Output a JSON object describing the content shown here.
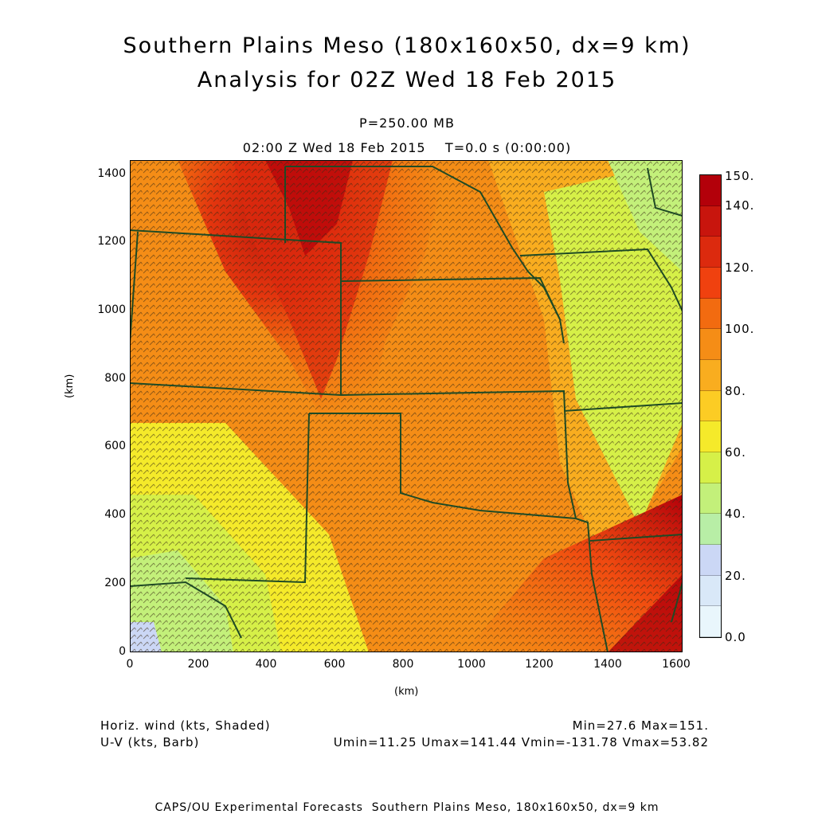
{
  "header": {
    "title_line1": "Southern Plains Meso (180x160x50, dx=9 km)",
    "title_line2": "Analysis for 02Z Wed 18 Feb 2015",
    "level": "P=250.00 MB",
    "time": "02:00 Z Wed 18 Feb 2015    T=0.0 s (0:00:00)"
  },
  "axes": {
    "x_label": "(km)",
    "y_label": "(km)",
    "x_ticks": [
      "0",
      "200",
      "400",
      "600",
      "800",
      "1000",
      "1200",
      "1400",
      "1600"
    ],
    "y_ticks": [
      "0",
      "200",
      "400",
      "600",
      "800",
      "1000",
      "1200",
      "1400"
    ],
    "x_range_km": [
      0,
      1620
    ],
    "y_range_km": [
      0,
      1440
    ]
  },
  "colorbar": {
    "labels": [
      "150.",
      "140.",
      "120.",
      "100.",
      "80.",
      "60.",
      "40.",
      "20.",
      "0.0"
    ],
    "colors": [
      "#b3000a",
      "#c8150d",
      "#dc2a0e",
      "#f0410f",
      "#f26b10",
      "#f58d16",
      "#f9ad1f",
      "#fccc24",
      "#f5ea2a",
      "#d6f048",
      "#c3f07a",
      "#b8eea6",
      "#cbd7f5",
      "#d9e8f8",
      "#e9f6fc"
    ]
  },
  "legend": {
    "field1": "Horiz. wind (kts, Shaded)",
    "field2": "U-V (kts, Barb)",
    "minmax": "Min=27.6 Max=151.",
    "uv_stats": "Umin=11.25 Umax=141.44 Vmin=-131.78 Vmax=53.82"
  },
  "footer": {
    "credit": "CAPS/OU Experimental Forecasts  Southern Plains Meso, 180x160x50, dx=9 km"
  },
  "map": {
    "colors": {
      "state_border": "#1f4a25",
      "barb": "#3a2a14"
    }
  }
}
